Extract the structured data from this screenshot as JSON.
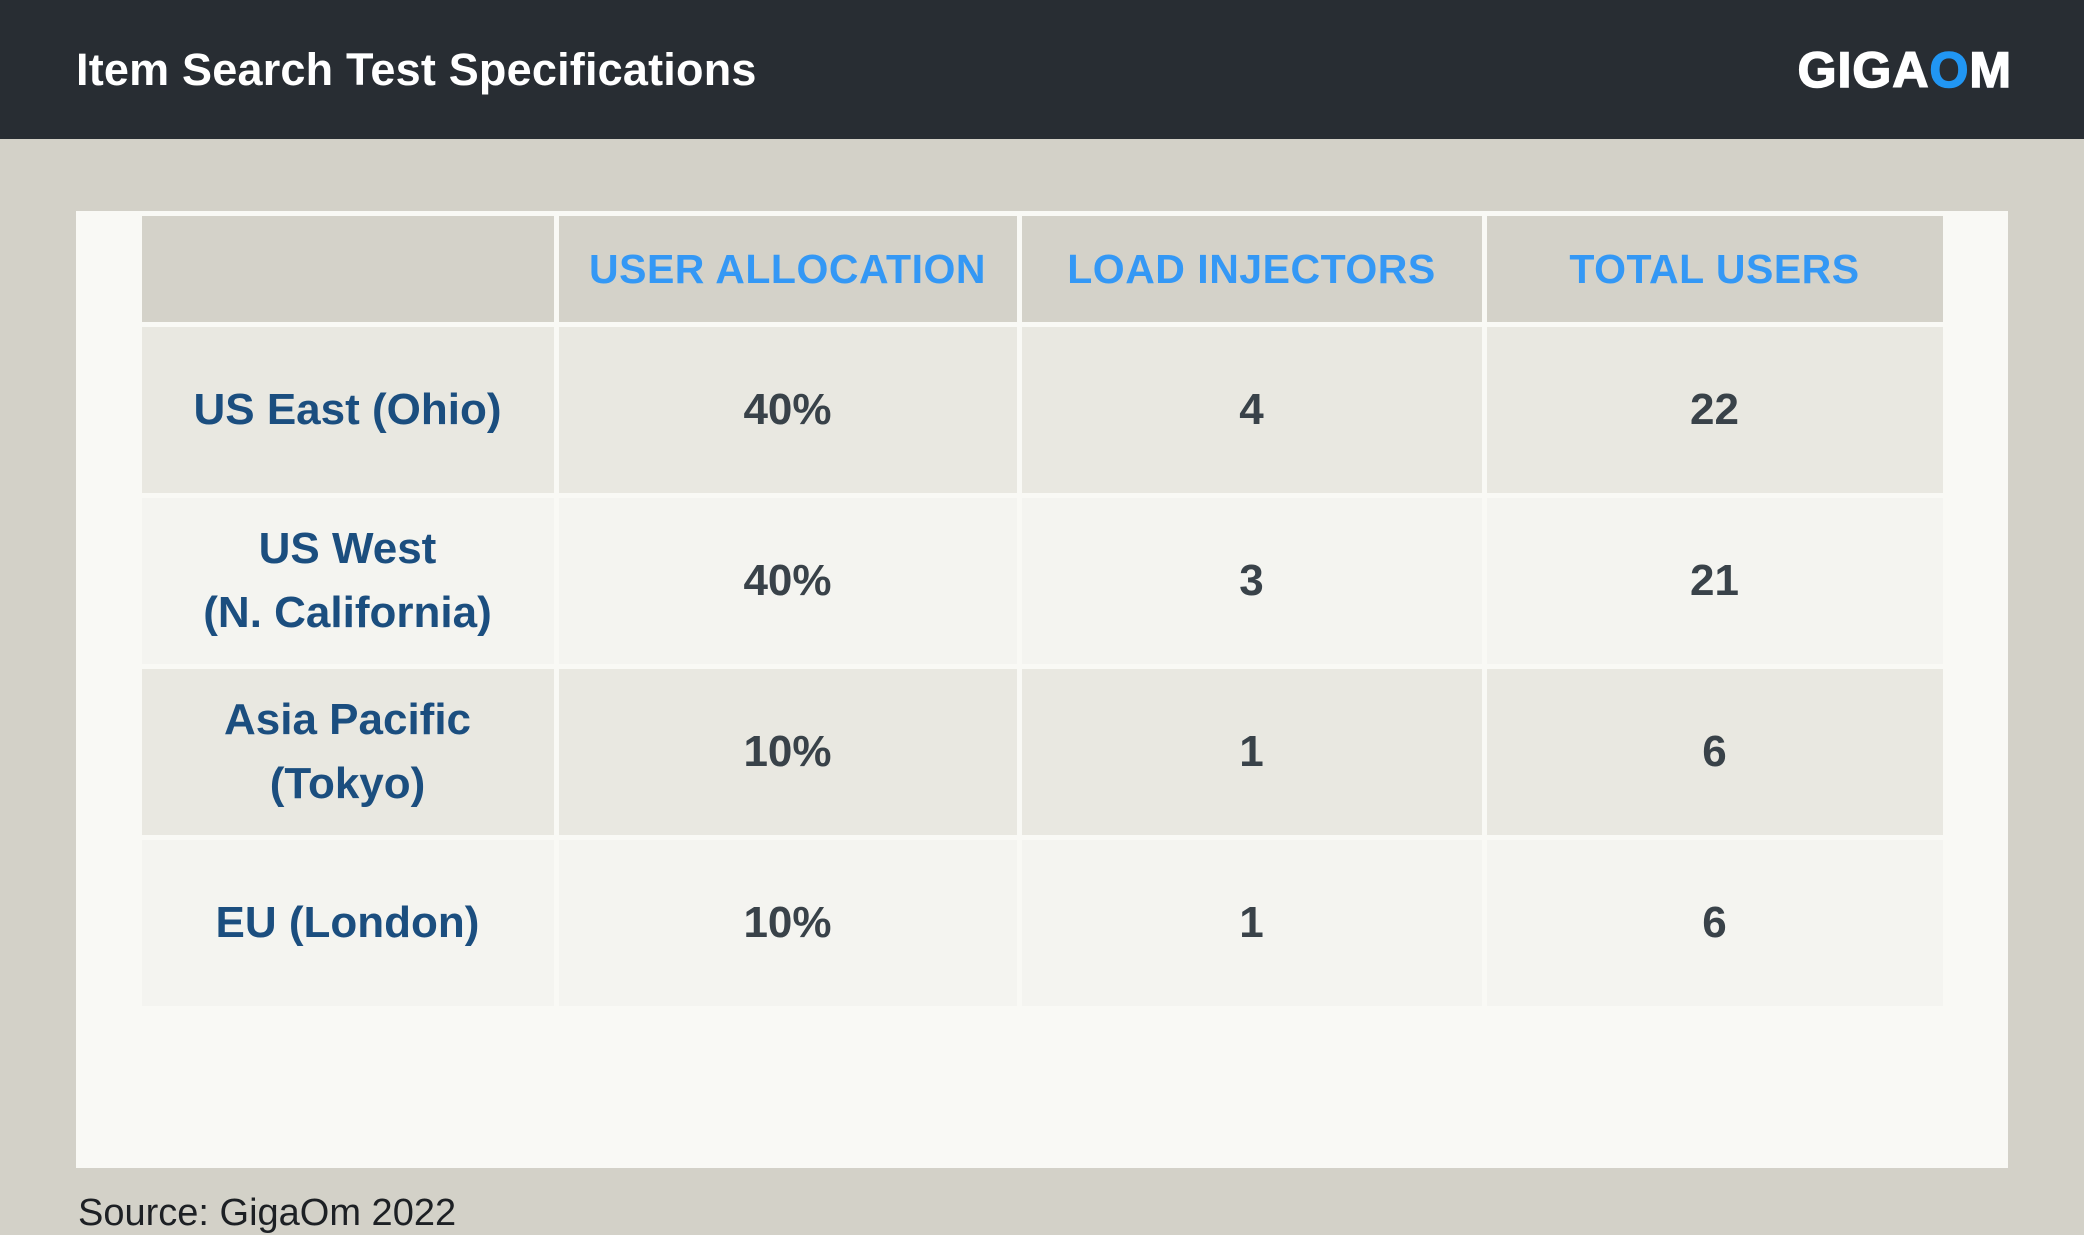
{
  "title_bar": {
    "title": "Item Search Test Specifications",
    "logo_giga": "GIGA",
    "logo_o": "O",
    "logo_m": "M"
  },
  "table": {
    "headers": [
      "",
      "USER ALLOCATION",
      "LOAD INJECTORS",
      "TOTAL USERS"
    ],
    "rows": [
      {
        "region_lines": [
          "US East (Ohio)"
        ],
        "user_allocation": "40%",
        "load_injectors": "4",
        "total_users": "22"
      },
      {
        "region_lines": [
          "US West",
          "(N. California)"
        ],
        "user_allocation": "40%",
        "load_injectors": "3",
        "total_users": "21"
      },
      {
        "region_lines": [
          "Asia Pacific",
          "(Tokyo)"
        ],
        "user_allocation": "10%",
        "load_injectors": "1",
        "total_users": "6"
      },
      {
        "region_lines": [
          "EU (London)"
        ],
        "user_allocation": "10%",
        "load_injectors": "1",
        "total_users": "6"
      }
    ]
  },
  "source": "Source: GigaOm 2022",
  "chart_data": {
    "type": "table",
    "title": "Item Search Test Specifications",
    "columns": [
      "",
      "USER ALLOCATION",
      "LOAD INJECTORS",
      "TOTAL USERS"
    ],
    "rows": [
      [
        "US East (Ohio)",
        "40%",
        4,
        22
      ],
      [
        "US West (N. California)",
        "40%",
        3,
        21
      ],
      [
        "Asia Pacific (Tokyo)",
        "10%",
        1,
        6
      ],
      [
        "EU (London)",
        "10%",
        1,
        6
      ]
    ],
    "source": "Source: GigaOm 2022"
  },
  "colors": {
    "header_bar": "#282d33",
    "page_bg": "#d3d1c8",
    "card_bg": "#f9f9f5",
    "th_bg": "#d4d2c9",
    "row_odd_bg": "#e9e8e1",
    "row_even_bg": "#f4f4f0",
    "accent_blue": "#3498f5",
    "logo_o_blue": "#2196f3",
    "region_navy": "#1b4e7f",
    "value_charcoal": "#394249"
  }
}
